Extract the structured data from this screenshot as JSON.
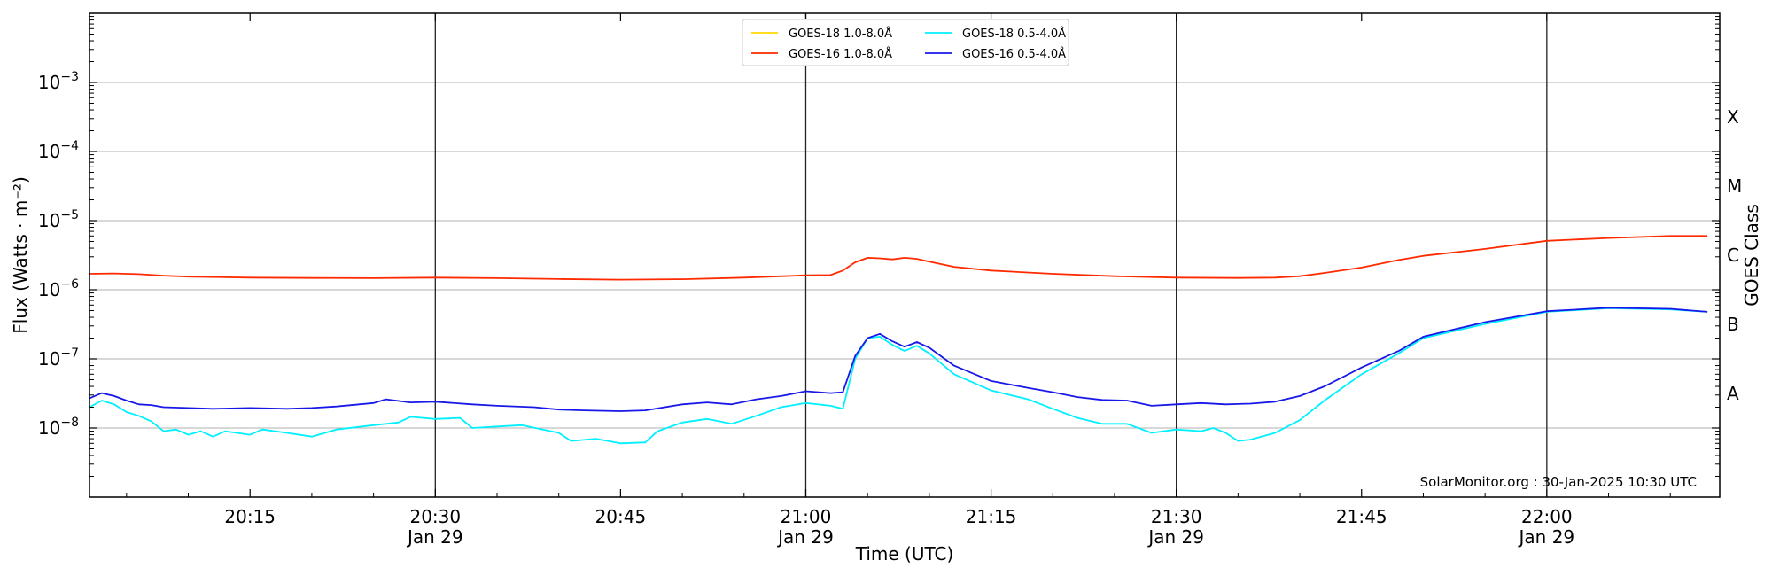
{
  "chart_data": {
    "type": "line",
    "title": "",
    "xlabel": "Time (UTC)",
    "ylabel": "Flux (Watts · m⁻²)",
    "ylabel_right": "GOES Class",
    "yscale": "log",
    "xlim": [
      "20:02",
      "22:14"
    ],
    "ylim": [
      1e-09,
      0.01
    ],
    "grid": "horizontal at decades",
    "x_ticks": [
      {
        "time": "20:15",
        "label": "20:15",
        "sub": ""
      },
      {
        "time": "20:30",
        "label": "20:30",
        "sub": "Jan 29"
      },
      {
        "time": "20:45",
        "label": "20:45",
        "sub": ""
      },
      {
        "time": "21:00",
        "label": "21:00",
        "sub": "Jan 29"
      },
      {
        "time": "21:15",
        "label": "21:15",
        "sub": ""
      },
      {
        "time": "21:30",
        "label": "21:30",
        "sub": "Jan 29"
      },
      {
        "time": "21:45",
        "label": "21:45",
        "sub": ""
      },
      {
        "time": "22:00",
        "label": "22:00",
        "sub": "Jan 29"
      }
    ],
    "vlines": [
      "20:30",
      "21:00",
      "21:30",
      "22:00"
    ],
    "y_ticks": [
      {
        "value": 1e-08,
        "mantissa": "10",
        "exp": "−8"
      },
      {
        "value": 1e-07,
        "mantissa": "10",
        "exp": "−7"
      },
      {
        "value": 1e-06,
        "mantissa": "10",
        "exp": "−6"
      },
      {
        "value": 1e-05,
        "mantissa": "10",
        "exp": "−5"
      },
      {
        "value": 0.0001,
        "mantissa": "10",
        "exp": "−4"
      },
      {
        "value": 0.001,
        "mantissa": "10",
        "exp": "−3"
      }
    ],
    "goes_classes": [
      {
        "label": "A",
        "value": 3.16e-08
      },
      {
        "label": "B",
        "value": 3.16e-07
      },
      {
        "label": "C",
        "value": 3.16e-06
      },
      {
        "label": "M",
        "value": 3.16e-05
      },
      {
        "label": "X",
        "value": 0.000316
      }
    ],
    "legend_position": "top-center",
    "series": [
      {
        "name": "GOES-18 1.0-8.0Å",
        "color": "#ffd700",
        "points": []
      },
      {
        "name": "GOES-16 1.0-8.0Å",
        "color": "#ff2a00",
        "points": [
          [
            "20:02",
            1.7e-06
          ],
          [
            "20:04",
            1.72e-06
          ],
          [
            "20:06",
            1.68e-06
          ],
          [
            "20:08",
            1.6e-06
          ],
          [
            "20:10",
            1.55e-06
          ],
          [
            "20:15",
            1.5e-06
          ],
          [
            "20:20",
            1.48e-06
          ],
          [
            "20:25",
            1.47e-06
          ],
          [
            "20:30",
            1.5e-06
          ],
          [
            "20:35",
            1.47e-06
          ],
          [
            "20:40",
            1.43e-06
          ],
          [
            "20:45",
            1.4e-06
          ],
          [
            "20:50",
            1.42e-06
          ],
          [
            "20:55",
            1.5e-06
          ],
          [
            "21:00",
            1.62e-06
          ],
          [
            "21:02",
            1.63e-06
          ],
          [
            "21:03",
            1.9e-06
          ],
          [
            "21:04",
            2.5e-06
          ],
          [
            "21:05",
            2.9e-06
          ],
          [
            "21:06",
            2.85e-06
          ],
          [
            "21:07",
            2.75e-06
          ],
          [
            "21:08",
            2.9e-06
          ],
          [
            "21:09",
            2.8e-06
          ],
          [
            "21:10",
            2.55e-06
          ],
          [
            "21:12",
            2.15e-06
          ],
          [
            "21:15",
            1.9e-06
          ],
          [
            "21:20",
            1.7e-06
          ],
          [
            "21:25",
            1.57e-06
          ],
          [
            "21:30",
            1.5e-06
          ],
          [
            "21:35",
            1.48e-06
          ],
          [
            "21:38",
            1.5e-06
          ],
          [
            "21:40",
            1.57e-06
          ],
          [
            "21:42",
            1.75e-06
          ],
          [
            "21:45",
            2.1e-06
          ],
          [
            "21:48",
            2.7e-06
          ],
          [
            "21:50",
            3.1e-06
          ],
          [
            "21:55",
            3.9e-06
          ],
          [
            "22:00",
            5.1e-06
          ],
          [
            "22:05",
            5.6e-06
          ],
          [
            "22:10",
            6e-06
          ],
          [
            "22:13",
            6e-06
          ]
        ]
      },
      {
        "name": "GOES-18 0.5-4.0Å",
        "color": "#00f0ff",
        "points": [
          [
            "20:02",
            2e-08
          ],
          [
            "20:03",
            2.5e-08
          ],
          [
            "20:04",
            2.2e-08
          ],
          [
            "20:05",
            1.7e-08
          ],
          [
            "20:06",
            1.5e-08
          ],
          [
            "20:07",
            1.25e-08
          ],
          [
            "20:08",
            9e-09
          ],
          [
            "20:09",
            9.5e-09
          ],
          [
            "20:10",
            8e-09
          ],
          [
            "20:11",
            9e-09
          ],
          [
            "20:12",
            7.5e-09
          ],
          [
            "20:13",
            9e-09
          ],
          [
            "20:15",
            8e-09
          ],
          [
            "20:16",
            9.5e-09
          ],
          [
            "20:18",
            8.5e-09
          ],
          [
            "20:20",
            7.5e-09
          ],
          [
            "20:22",
            9.5e-09
          ],
          [
            "20:25",
            1.1e-08
          ],
          [
            "20:27",
            1.2e-08
          ],
          [
            "20:28",
            1.45e-08
          ],
          [
            "20:30",
            1.35e-08
          ],
          [
            "20:32",
            1.4e-08
          ],
          [
            "20:33",
            1e-08
          ],
          [
            "20:35",
            1.05e-08
          ],
          [
            "20:37",
            1.1e-08
          ],
          [
            "20:40",
            8.5e-09
          ],
          [
            "20:41",
            6.5e-09
          ],
          [
            "20:43",
            7e-09
          ],
          [
            "20:45",
            6e-09
          ],
          [
            "20:47",
            6.2e-09
          ],
          [
            "20:48",
            9e-09
          ],
          [
            "20:50",
            1.2e-08
          ],
          [
            "20:52",
            1.35e-08
          ],
          [
            "20:54",
            1.15e-08
          ],
          [
            "20:56",
            1.5e-08
          ],
          [
            "20:58",
            2e-08
          ],
          [
            "21:00",
            2.3e-08
          ],
          [
            "21:02",
            2.1e-08
          ],
          [
            "21:03",
            1.9e-08
          ],
          [
            "21:04",
            1e-07
          ],
          [
            "21:05",
            2e-07
          ],
          [
            "21:06",
            2.1e-07
          ],
          [
            "21:07",
            1.6e-07
          ],
          [
            "21:08",
            1.3e-07
          ],
          [
            "21:09",
            1.55e-07
          ],
          [
            "21:10",
            1.2e-07
          ],
          [
            "21:12",
            6e-08
          ],
          [
            "21:15",
            3.5e-08
          ],
          [
            "21:18",
            2.6e-08
          ],
          [
            "21:20",
            1.9e-08
          ],
          [
            "21:22",
            1.4e-08
          ],
          [
            "21:24",
            1.15e-08
          ],
          [
            "21:26",
            1.15e-08
          ],
          [
            "21:28",
            8.5e-09
          ],
          [
            "21:30",
            9.5e-09
          ],
          [
            "21:32",
            9e-09
          ],
          [
            "21:33",
            1e-08
          ],
          [
            "21:34",
            8.5e-09
          ],
          [
            "21:35",
            6.5e-09
          ],
          [
            "21:36",
            6.8e-09
          ],
          [
            "21:38",
            8.5e-09
          ],
          [
            "21:40",
            1.3e-08
          ],
          [
            "21:42",
            2.5e-08
          ],
          [
            "21:45",
            6e-08
          ],
          [
            "21:48",
            1.2e-07
          ],
          [
            "21:50",
            2e-07
          ],
          [
            "21:55",
            3.2e-07
          ],
          [
            "22:00",
            4.8e-07
          ],
          [
            "22:05",
            5.4e-07
          ],
          [
            "22:10",
            5.2e-07
          ],
          [
            "22:13",
            4.8e-07
          ]
        ]
      },
      {
        "name": "GOES-16 0.5-4.0Å",
        "color": "#1818e8",
        "points": [
          [
            "20:02",
            2.7e-08
          ],
          [
            "20:03",
            3.2e-08
          ],
          [
            "20:04",
            2.9e-08
          ],
          [
            "20:05",
            2.5e-08
          ],
          [
            "20:06",
            2.2e-08
          ],
          [
            "20:07",
            2.15e-08
          ],
          [
            "20:08",
            2e-08
          ],
          [
            "20:10",
            1.95e-08
          ],
          [
            "20:12",
            1.9e-08
          ],
          [
            "20:15",
            1.95e-08
          ],
          [
            "20:18",
            1.9e-08
          ],
          [
            "20:20",
            1.95e-08
          ],
          [
            "20:22",
            2.05e-08
          ],
          [
            "20:25",
            2.3e-08
          ],
          [
            "20:26",
            2.6e-08
          ],
          [
            "20:28",
            2.35e-08
          ],
          [
            "20:30",
            2.4e-08
          ],
          [
            "20:33",
            2.2e-08
          ],
          [
            "20:35",
            2.1e-08
          ],
          [
            "20:38",
            2e-08
          ],
          [
            "20:40",
            1.85e-08
          ],
          [
            "20:42",
            1.8e-08
          ],
          [
            "20:45",
            1.75e-08
          ],
          [
            "20:47",
            1.8e-08
          ],
          [
            "20:50",
            2.2e-08
          ],
          [
            "20:52",
            2.35e-08
          ],
          [
            "20:54",
            2.2e-08
          ],
          [
            "20:56",
            2.6e-08
          ],
          [
            "20:58",
            2.9e-08
          ],
          [
            "21:00",
            3.4e-08
          ],
          [
            "21:02",
            3.2e-08
          ],
          [
            "21:03",
            3.3e-08
          ],
          [
            "21:04",
            1.1e-07
          ],
          [
            "21:05",
            2e-07
          ],
          [
            "21:06",
            2.3e-07
          ],
          [
            "21:07",
            1.8e-07
          ],
          [
            "21:08",
            1.5e-07
          ],
          [
            "21:09",
            1.75e-07
          ],
          [
            "21:10",
            1.45e-07
          ],
          [
            "21:12",
            8e-08
          ],
          [
            "21:15",
            4.8e-08
          ],
          [
            "21:18",
            3.8e-08
          ],
          [
            "21:20",
            3.3e-08
          ],
          [
            "21:22",
            2.8e-08
          ],
          [
            "21:24",
            2.55e-08
          ],
          [
            "21:26",
            2.5e-08
          ],
          [
            "21:28",
            2.1e-08
          ],
          [
            "21:30",
            2.2e-08
          ],
          [
            "21:32",
            2.3e-08
          ],
          [
            "21:34",
            2.2e-08
          ],
          [
            "21:36",
            2.25e-08
          ],
          [
            "21:38",
            2.4e-08
          ],
          [
            "21:40",
            2.9e-08
          ],
          [
            "21:42",
            4e-08
          ],
          [
            "21:45",
            7.5e-08
          ],
          [
            "21:48",
            1.3e-07
          ],
          [
            "21:50",
            2.1e-07
          ],
          [
            "21:55",
            3.4e-07
          ],
          [
            "22:00",
            4.9e-07
          ],
          [
            "22:05",
            5.5e-07
          ],
          [
            "22:10",
            5.3e-07
          ],
          [
            "22:13",
            4.8e-07
          ]
        ]
      }
    ],
    "annotation": "SolarMonitor.org : 30-Jan-2025 10:30 UTC"
  }
}
